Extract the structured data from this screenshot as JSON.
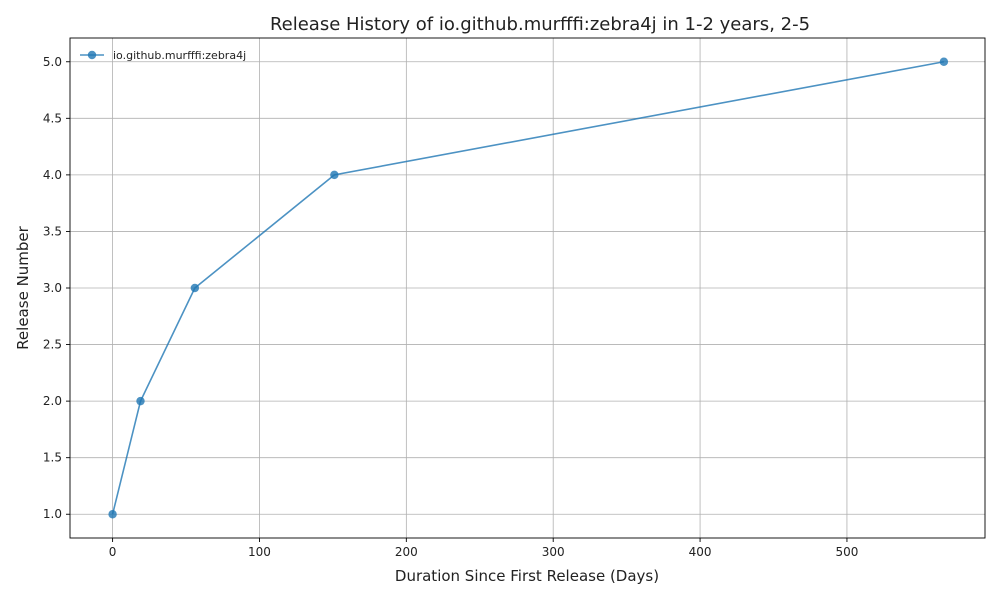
{
  "chart_data": {
    "type": "line",
    "title": "Release History of io.github.murfffi:zebra4j in 1-2 years, 2-5",
    "xlabel": "Duration Since First Release (Days)",
    "ylabel": "Release Number",
    "xlim": [
      -29,
      594
    ],
    "ylim": [
      0.79,
      5.21
    ],
    "xticks": [
      0,
      100,
      200,
      300,
      400,
      500
    ],
    "yticks": [
      1.0,
      1.5,
      2.0,
      2.5,
      3.0,
      3.5,
      4.0,
      4.5,
      5.0
    ],
    "xtick_labels": [
      "0",
      "100",
      "200",
      "300",
      "400",
      "500"
    ],
    "ytick_labels": [
      "1.0",
      "1.5",
      "2.0",
      "2.5",
      "3.0",
      "3.5",
      "4.0",
      "4.5",
      "5.0"
    ],
    "grid": true,
    "legend_position": "top-left",
    "series": [
      {
        "name": "io.github.murfffi:zebra4j",
        "color": "#1f77b4",
        "x": [
          0,
          19,
          56,
          151,
          566
        ],
        "y": [
          1,
          2,
          3,
          4,
          5
        ]
      }
    ]
  }
}
